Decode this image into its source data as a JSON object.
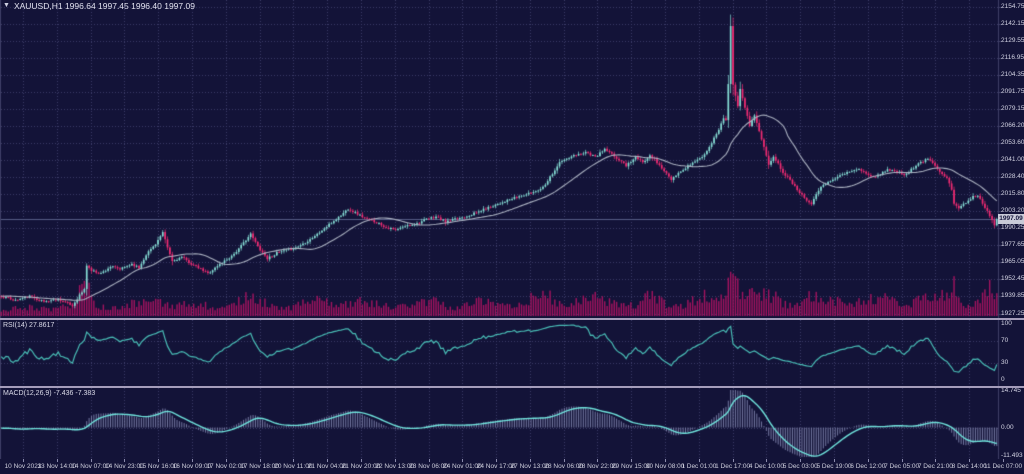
{
  "window": {
    "title": "XAUUSD,H1  1996.64 1997.45 1996.40 1997.09",
    "menu_marker": "▼"
  },
  "colors": {
    "bg": "#131338",
    "panel_border": "#3e3e66",
    "grid": "#3d3d68",
    "bull": "#85dcd4",
    "bear": "#ef2b72",
    "ma": "#aab1c0",
    "volume": "#a4135f",
    "rsi": "#49bdb6",
    "macd_hist": "#8d92bb",
    "macd_signal": "#6fe3dc",
    "separator": "#a59dbb",
    "axis_text": "#d4d4e4",
    "tag_bg": "#c9cbd8",
    "tag_text": "#12123a",
    "bid_line": "#565d86",
    "title_text": "#e2e2ef"
  },
  "price_axis": {
    "labels": [
      "2154.75",
      "2142.15",
      "2129.55",
      "2116.95",
      "2104.35",
      "2091.75",
      "2079.15",
      "2066.20",
      "2053.60",
      "2041.00",
      "2028.40",
      "2015.80",
      "2003.20",
      "1990.25",
      "1977.65",
      "1965.05",
      "1952.45",
      "1939.85",
      "1927.25"
    ],
    "current": "1997.09"
  },
  "time_axis": {
    "labels": [
      "10 Nov 2023",
      "13 Nov 14:00",
      "14 Nov 07:00",
      "14 Nov 23:00",
      "15 Nov 16:00",
      "16 Nov 09:00",
      "17 Nov 02:00",
      "17 Nov 18:00",
      "20 Nov 11:00",
      "21 Nov 04:00",
      "21 Nov 20:00",
      "22 Nov 13:00",
      "23 Nov 06:00",
      "24 Nov 01:00",
      "24 Nov 17:00",
      "27 Nov 13:00",
      "28 Nov 06:00",
      "28 Nov 22:00",
      "29 Nov 15:00",
      "30 Nov 08:00",
      "1 Dec 01:00",
      "1 Dec 17:00",
      "4 Dec 10:00",
      "5 Dec 03:00",
      "5 Dec 19:00",
      "6 Dec 12:00",
      "7 Dec 05:00",
      "7 Dec 21:00",
      "8 Dec 14:00",
      "11 Dec 07:00"
    ]
  },
  "rsi_panel": {
    "label": "RSI(14) 27.8617",
    "scale": [
      "100",
      "70",
      "30",
      "0"
    ],
    "scale_values": [
      100,
      70,
      30,
      0
    ],
    "levels": [
      70,
      30
    ]
  },
  "macd_panel": {
    "label": "MACD(12,26,9) -7.436 -7.383",
    "scale": [
      "14.745",
      "0.00",
      "-11.493"
    ],
    "scale_values": [
      14.745,
      0,
      -11.493
    ]
  },
  "chart_data": {
    "type": "candlestick",
    "symbol": "XAUUSD",
    "timeframe": "H1",
    "title": "XAUUSD,H1",
    "last_quote": {
      "open": 1996.64,
      "high": 1997.45,
      "low": 1996.4,
      "close": 1997.09
    },
    "bars": 420,
    "ylim": [
      1927.25,
      2154.75
    ],
    "grid": true,
    "legend_position": "top-left",
    "close_waypoints": [
      [
        -30,
        1942
      ],
      [
        -20,
        1938
      ],
      [
        -12,
        1943
      ],
      [
        -6,
        1939
      ],
      [
        0,
        1940
      ],
      [
        6,
        1937
      ],
      [
        12,
        1940
      ],
      [
        18,
        1936
      ],
      [
        24,
        1938
      ],
      [
        30,
        1933
      ],
      [
        33,
        1941
      ],
      [
        35,
        1945
      ],
      [
        36,
        1963
      ],
      [
        38,
        1959
      ],
      [
        42,
        1957
      ],
      [
        46,
        1962
      ],
      [
        50,
        1960
      ],
      [
        55,
        1964
      ],
      [
        58,
        1961
      ],
      [
        61,
        1971
      ],
      [
        65,
        1979
      ],
      [
        68,
        1987
      ],
      [
        70,
        1976
      ],
      [
        72,
        1966
      ],
      [
        76,
        1969
      ],
      [
        80,
        1964
      ],
      [
        84,
        1960
      ],
      [
        87,
        1957
      ],
      [
        90,
        1961
      ],
      [
        93,
        1965
      ],
      [
        97,
        1970
      ],
      [
        100,
        1975
      ],
      [
        103,
        1982
      ],
      [
        105,
        1986
      ],
      [
        108,
        1977
      ],
      [
        112,
        1968
      ],
      [
        116,
        1972
      ],
      [
        120,
        1974
      ],
      [
        124,
        1976
      ],
      [
        128,
        1980
      ],
      [
        133,
        1986
      ],
      [
        138,
        1993
      ],
      [
        143,
        2000
      ],
      [
        146,
        2005
      ],
      [
        150,
        2001
      ],
      [
        154,
        1997
      ],
      [
        158,
        1995
      ],
      [
        162,
        1991
      ],
      [
        166,
        1989
      ],
      [
        170,
        1992
      ],
      [
        175,
        1994
      ],
      [
        179,
        1997
      ],
      [
        183,
        1999
      ],
      [
        187,
        1995
      ],
      [
        191,
        1997
      ],
      [
        195,
        1999
      ],
      [
        200,
        2002
      ],
      [
        204,
        2005
      ],
      [
        208,
        2008
      ],
      [
        213,
        2011
      ],
      [
        218,
        2014
      ],
      [
        222,
        2016
      ],
      [
        225,
        2018
      ],
      [
        228,
        2021
      ],
      [
        232,
        2031
      ],
      [
        235,
        2039
      ],
      [
        237,
        2041
      ],
      [
        241,
        2044
      ],
      [
        246,
        2047
      ],
      [
        250,
        2043
      ],
      [
        254,
        2049
      ],
      [
        257,
        2045
      ],
      [
        260,
        2041
      ],
      [
        263,
        2037
      ],
      [
        267,
        2043
      ],
      [
        270,
        2039
      ],
      [
        273,
        2045
      ],
      [
        276,
        2039
      ],
      [
        279,
        2033
      ],
      [
        282,
        2026
      ],
      [
        285,
        2031
      ],
      [
        288,
        2035
      ],
      [
        290,
        2038
      ],
      [
        293,
        2041
      ],
      [
        296,
        2045
      ],
      [
        298,
        2051
      ],
      [
        300,
        2057
      ],
      [
        302,
        2064
      ],
      [
        304,
        2072
      ],
      [
        305,
        2071
      ],
      [
        306,
        2098
      ],
      [
        307,
        2141
      ],
      [
        308,
        2097
      ],
      [
        309,
        2088
      ],
      [
        310,
        2081
      ],
      [
        311,
        2093
      ],
      [
        312,
        2087
      ],
      [
        313,
        2080
      ],
      [
        315,
        2067
      ],
      [
        317,
        2074
      ],
      [
        319,
        2062
      ],
      [
        321,
        2050
      ],
      [
        323,
        2038
      ],
      [
        325,
        2044
      ],
      [
        327,
        2038
      ],
      [
        329,
        2032
      ],
      [
        332,
        2026
      ],
      [
        334,
        2022
      ],
      [
        336,
        2017
      ],
      [
        338,
        2013
      ],
      [
        341,
        2009
      ],
      [
        344,
        2019
      ],
      [
        348,
        2025
      ],
      [
        351,
        2028
      ],
      [
        354,
        2030
      ],
      [
        358,
        2033
      ],
      [
        361,
        2034
      ],
      [
        364,
        2031
      ],
      [
        367,
        2028
      ],
      [
        370,
        2031
      ],
      [
        373,
        2034
      ],
      [
        377,
        2032
      ],
      [
        380,
        2030
      ],
      [
        383,
        2034
      ],
      [
        386,
        2038
      ],
      [
        390,
        2042
      ],
      [
        392,
        2039
      ],
      [
        394,
        2035
      ],
      [
        396,
        2031
      ],
      [
        398,
        2028
      ],
      [
        400,
        2019
      ],
      [
        401,
        2009
      ],
      [
        403,
        2005
      ],
      [
        405,
        2008
      ],
      [
        407,
        2011
      ],
      [
        409,
        2014
      ],
      [
        411,
        2015
      ],
      [
        413,
        2009
      ],
      [
        415,
        2003
      ],
      [
        417,
        1997
      ],
      [
        418,
        1993
      ],
      [
        419,
        1997.09
      ]
    ],
    "spike": {
      "bar": 307,
      "high": 2148.8
    },
    "volume_envelope": [
      [
        0,
        0.25
      ],
      [
        10,
        0.2
      ],
      [
        20,
        0.3
      ],
      [
        30,
        0.35
      ],
      [
        36,
        0.85
      ],
      [
        40,
        0.4
      ],
      [
        50,
        0.3
      ],
      [
        60,
        0.35
      ],
      [
        68,
        0.55
      ],
      [
        75,
        0.35
      ],
      [
        87,
        0.3
      ],
      [
        95,
        0.35
      ],
      [
        103,
        0.5
      ],
      [
        112,
        0.4
      ],
      [
        120,
        0.3
      ],
      [
        133,
        0.45
      ],
      [
        143,
        0.55
      ],
      [
        150,
        0.4
      ],
      [
        158,
        0.35
      ],
      [
        166,
        0.4
      ],
      [
        175,
        0.35
      ],
      [
        183,
        0.45
      ],
      [
        191,
        0.35
      ],
      [
        200,
        0.4
      ],
      [
        208,
        0.45
      ],
      [
        218,
        0.5
      ],
      [
        225,
        0.45
      ],
      [
        232,
        0.6
      ],
      [
        237,
        0.5
      ],
      [
        246,
        0.55
      ],
      [
        254,
        0.5
      ],
      [
        260,
        0.45
      ],
      [
        267,
        0.4
      ],
      [
        273,
        0.5
      ],
      [
        279,
        0.4
      ],
      [
        285,
        0.45
      ],
      [
        290,
        0.5
      ],
      [
        298,
        0.55
      ],
      [
        304,
        0.6
      ],
      [
        307,
        1.0
      ],
      [
        311,
        0.8
      ],
      [
        315,
        0.7
      ],
      [
        319,
        0.6
      ],
      [
        323,
        0.55
      ],
      [
        329,
        0.5
      ],
      [
        334,
        0.45
      ],
      [
        338,
        0.55
      ],
      [
        341,
        0.65
      ],
      [
        348,
        0.45
      ],
      [
        354,
        0.5
      ],
      [
        361,
        0.55
      ],
      [
        367,
        0.45
      ],
      [
        373,
        0.5
      ],
      [
        380,
        0.45
      ],
      [
        386,
        0.6
      ],
      [
        390,
        0.5
      ],
      [
        394,
        0.45
      ],
      [
        398,
        0.6
      ],
      [
        401,
        0.9
      ],
      [
        404,
        0.6
      ],
      [
        407,
        0.5
      ],
      [
        410,
        0.55
      ],
      [
        413,
        0.6
      ],
      [
        416,
        0.75
      ],
      [
        419,
        0.5
      ]
    ],
    "indicators": [
      {
        "name": "SMA",
        "period": 24
      },
      {
        "name": "RSI",
        "period": 14,
        "last": 27.8617,
        "levels": [
          70,
          30
        ],
        "range": [
          0,
          100
        ]
      },
      {
        "name": "MACD",
        "fast": 12,
        "slow": 26,
        "signal": 9,
        "last_macd": -7.436,
        "last_signal": -7.383,
        "range": [
          -11.493,
          14.745
        ]
      }
    ],
    "current_price": 1997.09,
    "seed": 11
  }
}
